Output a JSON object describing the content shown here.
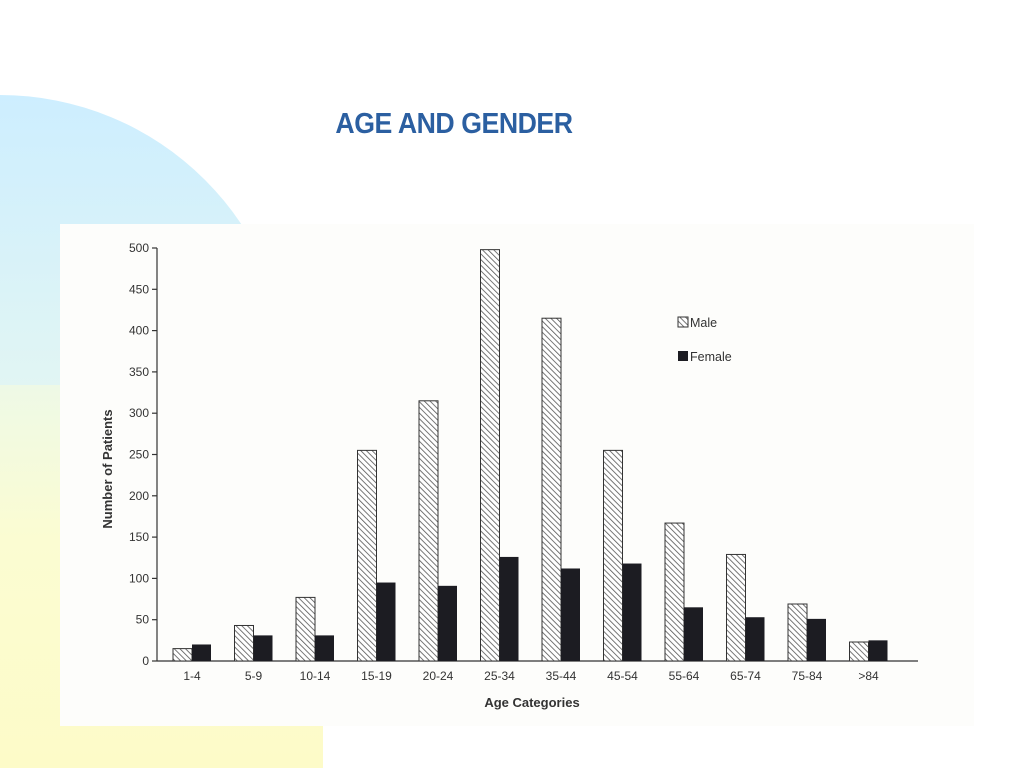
{
  "slide": {
    "title": "AGE AND GENDER"
  },
  "colors": {
    "title": "#2b5fa1",
    "female_bar": "#1c1c22",
    "male_hatch": "#555555",
    "axis": "#333333"
  },
  "chart_data": {
    "type": "bar",
    "title": "",
    "xlabel": "Age Categories",
    "ylabel": "Number of Patients",
    "ylim": [
      0,
      500
    ],
    "yticks": [
      0,
      50,
      100,
      150,
      200,
      250,
      300,
      350,
      400,
      450,
      500
    ],
    "categories": [
      "1-4",
      "5-9",
      "10-14",
      "15-19",
      "20-24",
      "25-34",
      "35-44",
      "45-54",
      "55-64",
      "65-74",
      "75-84",
      ">84"
    ],
    "series": [
      {
        "name": "Male",
        "pattern": "hatched",
        "values": [
          15,
          43,
          77,
          255,
          315,
          498,
          415,
          255,
          167,
          129,
          69,
          23
        ]
      },
      {
        "name": "Female",
        "pattern": "solid",
        "values": [
          20,
          31,
          31,
          95,
          91,
          126,
          112,
          118,
          65,
          53,
          51,
          25
        ]
      }
    ],
    "legend": {
      "placement": "top-right"
    },
    "grid": false
  }
}
